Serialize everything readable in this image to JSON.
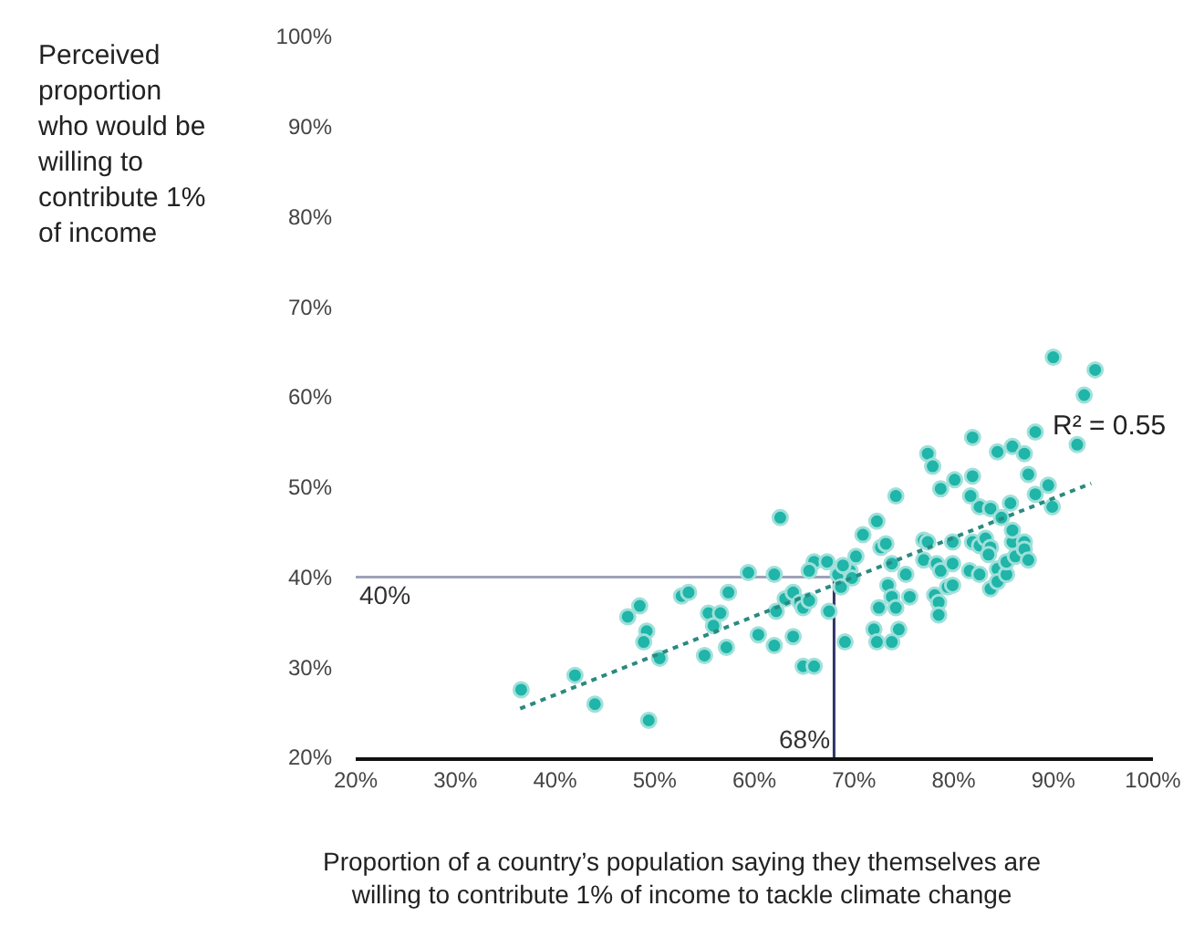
{
  "chart_data": {
    "type": "scatter",
    "xlabel": "Proportion of a country’s population saying they themselves are willing to contribute 1% of income to tackle climate change",
    "ylabel": "Perceived proportion who would be willing to contribute 1% of income",
    "xlim": [
      20,
      100
    ],
    "ylim": [
      20,
      100
    ],
    "xticks": [
      {
        "value": 20,
        "label": "20%"
      },
      {
        "value": 30,
        "label": "30%"
      },
      {
        "value": 40,
        "label": "40%"
      },
      {
        "value": 50,
        "label": "50%"
      },
      {
        "value": 60,
        "label": "60%"
      },
      {
        "value": 70,
        "label": "70%"
      },
      {
        "value": 80,
        "label": "80%"
      },
      {
        "value": 90,
        "label": "90%"
      },
      {
        "value": 100,
        "label": "100%"
      }
    ],
    "yticks": [
      {
        "value": 20,
        "label": "20%"
      },
      {
        "value": 30,
        "label": "30%"
      },
      {
        "value": 40,
        "label": "40%"
      },
      {
        "value": 50,
        "label": "50%"
      },
      {
        "value": 60,
        "label": "60%"
      },
      {
        "value": 70,
        "label": "70%"
      },
      {
        "value": 80,
        "label": "80%"
      },
      {
        "value": 90,
        "label": "90%"
      },
      {
        "value": 100,
        "label": "100%"
      }
    ],
    "grid": false,
    "series": [
      {
        "marker": "circle",
        "color": "#1fb5a8",
        "x": [
          36.6,
          42.0,
          44.0,
          49.4,
          47.3,
          48.5,
          49.2,
          48.9,
          50.5,
          52.7,
          53.4,
          55.0,
          55.4,
          56.6,
          55.9,
          57.2,
          57.4,
          59.4,
          60.4,
          62.0,
          62.0,
          62.2,
          63.9,
          64.9,
          66.0,
          63.1,
          63.9,
          64.6,
          64.9,
          65.5,
          66.0,
          67.3,
          65.5,
          68.4,
          67.5,
          69.1,
          70.2,
          69.6,
          68.9,
          68.7,
          62.6,
          70.9,
          74.2,
          72.3,
          72.7,
          73.2,
          69.8,
          73.8,
          75.2,
          73.4,
          73.8,
          75.6,
          72.5,
          74.2,
          72.0,
          74.5,
          72.3,
          73.8,
          77.0,
          77.4,
          77.0,
          78.3,
          78.7,
          79.9,
          78.1,
          78.5,
          79.4,
          79.9,
          78.5,
          79.9,
          81.6,
          82.6,
          81.9,
          82.6,
          83.2,
          83.7,
          83.5,
          84.4,
          83.7,
          84.4,
          85.3,
          85.3,
          86.2,
          85.9,
          85.9,
          87.1,
          87.1,
          87.5,
          82.6,
          83.7,
          84.8,
          85.7,
          81.7,
          78.7,
          80.1,
          81.9,
          88.2,
          89.5,
          89.9,
          87.5,
          77.4,
          77.9,
          90.0,
          94.2,
          93.1,
          92.4,
          81.9,
          84.4,
          85.9,
          87.1,
          88.2
        ],
        "values": [
          27.5,
          29.1,
          25.9,
          24.1,
          35.6,
          36.8,
          34.0,
          32.8,
          31.0,
          37.9,
          38.3,
          31.3,
          36.0,
          36.0,
          34.6,
          32.2,
          38.3,
          40.5,
          33.6,
          32.4,
          40.3,
          36.2,
          33.4,
          30.1,
          30.1,
          37.6,
          38.3,
          37.2,
          36.6,
          37.4,
          41.7,
          41.7,
          40.7,
          40.3,
          36.2,
          32.8,
          42.3,
          40.7,
          41.3,
          38.9,
          46.6,
          44.7,
          49.0,
          46.2,
          43.3,
          43.7,
          39.9,
          41.5,
          40.3,
          39.1,
          37.8,
          37.8,
          36.6,
          36.6,
          34.2,
          34.2,
          32.8,
          32.8,
          44.1,
          43.9,
          41.9,
          41.5,
          40.7,
          41.5,
          38.0,
          37.2,
          38.9,
          39.1,
          35.8,
          43.9,
          40.7,
          40.3,
          43.9,
          43.5,
          44.3,
          43.3,
          42.5,
          40.9,
          38.7,
          39.5,
          40.3,
          41.7,
          42.3,
          43.9,
          45.2,
          43.9,
          43.1,
          41.9,
          47.8,
          47.6,
          46.6,
          48.2,
          49.0,
          49.8,
          50.8,
          51.2,
          49.2,
          50.2,
          47.8,
          51.4,
          53.7,
          52.3,
          64.4,
          63.0,
          60.2,
          54.7,
          55.5,
          53.9,
          54.5,
          53.7,
          56.1
        ]
      },
      {
        "type": "line",
        "marker": "none",
        "line_style": "dotted",
        "color": "#2a8a80",
        "x": [
          36.5,
          93.8
        ],
        "values": [
          25.4,
          50.4
        ]
      }
    ],
    "ref_lines": [
      {
        "axis": "y",
        "value": 40,
        "label": "40%",
        "color": "#9ea2b8"
      },
      {
        "axis": "x",
        "value": 68,
        "label": "68%",
        "color": "#2e3566"
      }
    ],
    "annotations": [
      "R² = 0.55"
    ]
  }
}
